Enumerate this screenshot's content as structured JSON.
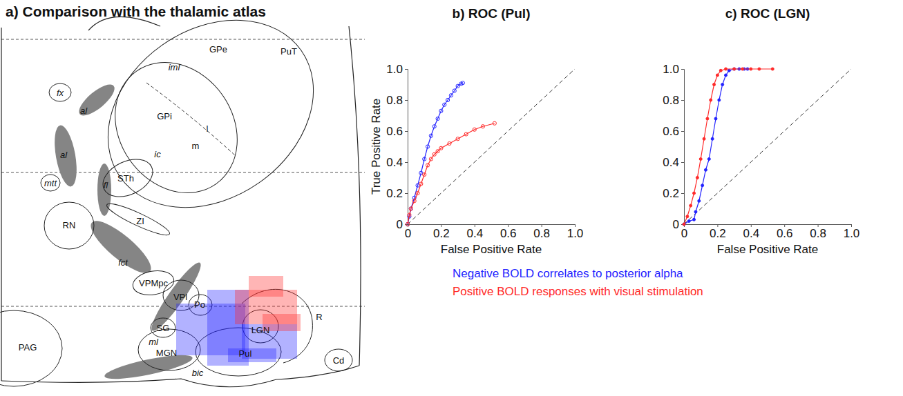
{
  "atlas": {
    "title": "a) Comparison with the thalamic atlas",
    "labels": [
      "fx",
      "al",
      "al",
      "mtt",
      "fl",
      "STh",
      "ic",
      "GPi",
      "iml",
      "GPe",
      "PuT",
      "l",
      "m",
      "RN",
      "ZI",
      "fct",
      "VPMpc",
      "VPl",
      "Po",
      "SG",
      "ml",
      "MGN",
      "LGN",
      "Pul",
      "R",
      "PAG",
      "bic",
      "Cd"
    ]
  },
  "shared_legend": [
    {
      "label": "Negative BOLD correlates to posterior alpha",
      "color": "#2323ff"
    },
    {
      "label": "Positive BOLD responses with visual stimulation",
      "color": "#ff2a2a"
    }
  ],
  "chart_data": [
    {
      "type": "line",
      "title": "b) ROC (Pul)",
      "x_label": "False Positive Rate",
      "y_label": "True Positive Rate",
      "xlim": [
        0,
        1
      ],
      "ylim": [
        0,
        1
      ],
      "xticks": [
        0,
        0.2,
        0.4,
        0.6,
        0.8,
        {
          "value": 1,
          "label": "1.0"
        }
      ],
      "yticks": [
        0,
        0.2,
        0.4,
        0.6,
        0.8,
        {
          "value": 1,
          "label": "1.0"
        }
      ],
      "series": [
        {
          "color": "#2323ff",
          "marker": "circle",
          "x": [
            0,
            0.01,
            0.02,
            0.04,
            0.06,
            0.08,
            0.1,
            0.12,
            0.14,
            0.16,
            0.18,
            0.2,
            0.22,
            0.24,
            0.26,
            0.28,
            0.3,
            0.32,
            0.33
          ],
          "values": [
            0,
            0.05,
            0.1,
            0.17,
            0.25,
            0.33,
            0.42,
            0.5,
            0.57,
            0.63,
            0.68,
            0.73,
            0.77,
            0.8,
            0.83,
            0.86,
            0.89,
            0.905,
            0.91
          ]
        },
        {
          "color": "#ff2a2a",
          "marker": "circle",
          "x": [
            0,
            0.01,
            0.02,
            0.04,
            0.06,
            0.08,
            0.1,
            0.12,
            0.14,
            0.16,
            0.18,
            0.2,
            0.25,
            0.3,
            0.35,
            0.4,
            0.45,
            0.52
          ],
          "values": [
            0,
            0.06,
            0.1,
            0.15,
            0.2,
            0.26,
            0.32,
            0.38,
            0.42,
            0.45,
            0.47,
            0.49,
            0.52,
            0.55,
            0.58,
            0.61,
            0.63,
            0.65
          ]
        }
      ]
    },
    {
      "type": "line",
      "title": "c) ROC (LGN)",
      "x_label": "False Positive Rate",
      "xlim": [
        0,
        1
      ],
      "ylim": [
        0,
        1
      ],
      "xticks": [
        0,
        0.2,
        0.4,
        0.6,
        0.8,
        {
          "value": 1,
          "label": "1.0"
        }
      ],
      "yticks": [
        0,
        0.2,
        0.4,
        0.6,
        0.8,
        {
          "value": 1,
          "label": "1.0"
        }
      ],
      "series": [
        {
          "color": "#2323ff",
          "marker": "dot",
          "x": [
            0,
            0.03,
            0.06,
            0.07,
            0.09,
            0.11,
            0.13,
            0.15,
            0.17,
            0.19,
            0.21,
            0.23,
            0.25,
            0.27,
            0.3,
            0.33,
            0.36,
            0.38
          ],
          "values": [
            0,
            0.02,
            0.03,
            0.08,
            0.15,
            0.25,
            0.35,
            0.42,
            0.55,
            0.68,
            0.8,
            0.9,
            0.96,
            0.99,
            1,
            1,
            1,
            1
          ]
        },
        {
          "color": "#ff2a2a",
          "marker": "dot",
          "x": [
            0,
            0.02,
            0.04,
            0.06,
            0.08,
            0.1,
            0.12,
            0.14,
            0.16,
            0.18,
            0.2,
            0.22,
            0.25,
            0.3,
            0.35,
            0.4,
            0.45,
            0.53
          ],
          "values": [
            0,
            0.05,
            0.12,
            0.2,
            0.3,
            0.42,
            0.55,
            0.68,
            0.8,
            0.9,
            0.96,
            0.99,
            1,
            1,
            1,
            1,
            1,
            1
          ]
        }
      ]
    }
  ]
}
